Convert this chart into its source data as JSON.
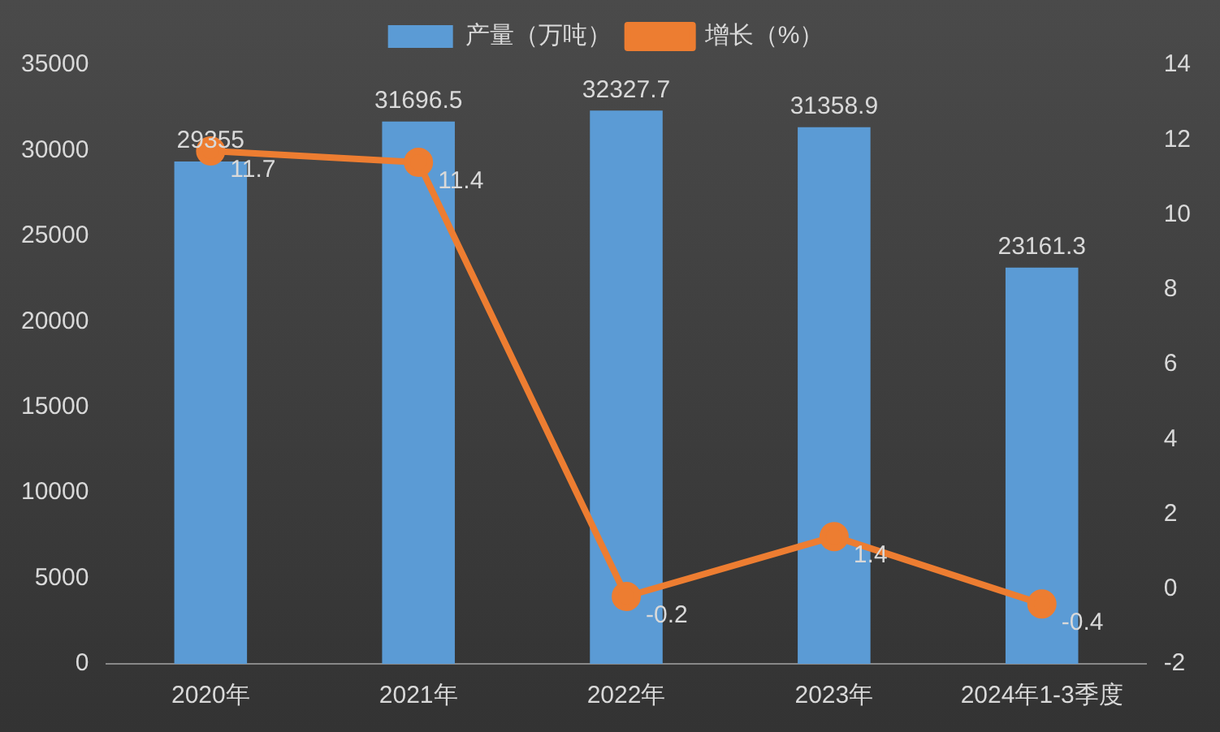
{
  "chart_data": {
    "type": "bar",
    "categories": [
      "2020年",
      "2021年",
      "2022年",
      "2023年",
      "2024年1-3季度"
    ],
    "series": [
      {
        "name": "产量（万吨）",
        "color": "#5b9bd5",
        "values": [
          29355,
          31696.5,
          32327.7,
          31358.9,
          23161.3
        ]
      },
      {
        "name": "增长（%）",
        "type": "line",
        "axis": "y2",
        "color": "#ed7d31",
        "values": [
          11.7,
          11.4,
          -0.2,
          1.4,
          -0.4
        ]
      }
    ],
    "ylim": [
      0,
      35000
    ],
    "yticks": [
      0,
      5000,
      10000,
      15000,
      20000,
      25000,
      30000,
      35000
    ],
    "y2lim": [
      -2,
      14
    ],
    "y2ticks": [
      -2,
      0,
      2,
      4,
      6,
      8,
      10,
      12,
      14
    ],
    "legend": "top",
    "marker": "circle",
    "data_labels": true
  }
}
